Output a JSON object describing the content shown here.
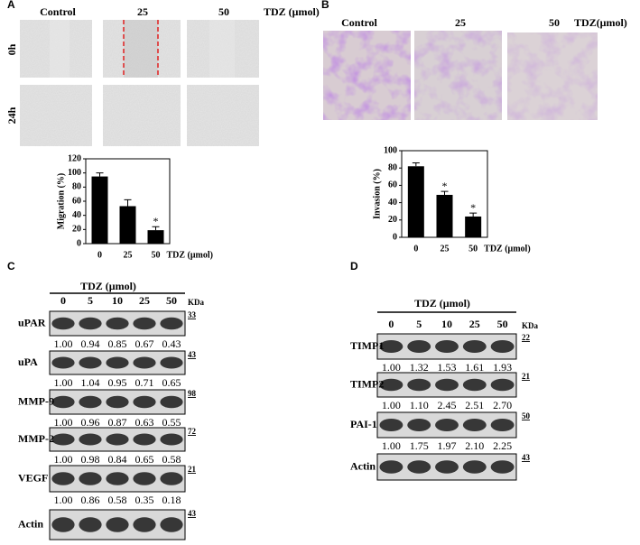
{
  "panel_a": {
    "letter": "A",
    "columns": [
      "Control",
      "25",
      "50"
    ],
    "unit": "TDZ (μmol)",
    "rows": [
      "0h",
      "24h"
    ]
  },
  "panel_b": {
    "letter": "B",
    "columns": [
      "Control",
      "25",
      "50"
    ],
    "unit": "TDZ(μmol)"
  },
  "panel_c": {
    "letter": "C",
    "title": "TDZ (μmol)",
    "lanes": [
      "0",
      "5",
      "10",
      "25",
      "50"
    ],
    "kda_label": "KDa",
    "blots": [
      {
        "label": "uPAR",
        "kda": "33",
        "values": [
          "1.00",
          "0.94",
          "0.85",
          "0.67",
          "0.43"
        ]
      },
      {
        "label": "uPA",
        "kda": "43",
        "values": [
          "1.00",
          "1.04",
          "0.95",
          "0.71",
          "0.65"
        ]
      },
      {
        "label": "MMP-9",
        "kda": "98",
        "values": [
          "1.00",
          "0.96",
          "0.87",
          "0.63",
          "0.55"
        ]
      },
      {
        "label": "MMP-2",
        "kda": "72",
        "values": [
          "1.00",
          "0.98",
          "0.84",
          "0.65",
          "0.58"
        ]
      },
      {
        "label": "VEGF",
        "kda": "21",
        "values": [
          "1.00",
          "0.86",
          "0.58",
          "0.35",
          "0.18"
        ]
      },
      {
        "label": "Actin",
        "kda": "43"
      }
    ]
  },
  "panel_d": {
    "letter": "D",
    "title": "TDZ (μmol)",
    "lanes": [
      "0",
      "5",
      "10",
      "25",
      "50"
    ],
    "kda_label": "KDa",
    "blots": [
      {
        "label": "TIMP1",
        "kda": "22",
        "values": [
          "1.00",
          "1.32",
          "1.53",
          "1.61",
          "1.93"
        ]
      },
      {
        "label": "TIMP2",
        "kda": "21",
        "values": [
          "1.00",
          "1.10",
          "2.45",
          "2.51",
          "2.70"
        ]
      },
      {
        "label": "PAI-1",
        "kda": "50",
        "values": [
          "1.00",
          "1.75",
          "1.97",
          "2.10",
          "2.25"
        ]
      },
      {
        "label": "Actin",
        "kda": "43"
      }
    ]
  },
  "chart_data": [
    {
      "type": "bar",
      "ylabel": "Migration (%)",
      "xlabel": "TDZ (μmol)",
      "categories": [
        "0",
        "25",
        "50"
      ],
      "values": [
        95,
        53,
        19
      ],
      "errors": [
        5,
        9,
        5
      ],
      "color": "#000000",
      "ylim": [
        0,
        120
      ],
      "yticks": [
        0,
        20,
        40,
        60,
        80,
        100,
        120
      ],
      "annotations": [
        {
          "x": "50",
          "text": "*"
        }
      ]
    },
    {
      "type": "bar",
      "ylabel": "Invasion (%)",
      "xlabel": "TDZ (μmol)",
      "categories": [
        "0",
        "25",
        "50"
      ],
      "values": [
        82,
        49,
        24
      ],
      "errors": [
        4,
        4,
        4
      ],
      "color": "#000000",
      "ylim": [
        0,
        100
      ],
      "yticks": [
        0,
        20,
        40,
        60,
        80,
        100
      ],
      "annotations": [
        {
          "x": "25",
          "text": "*"
        },
        {
          "x": "50",
          "text": "*"
        }
      ]
    }
  ]
}
